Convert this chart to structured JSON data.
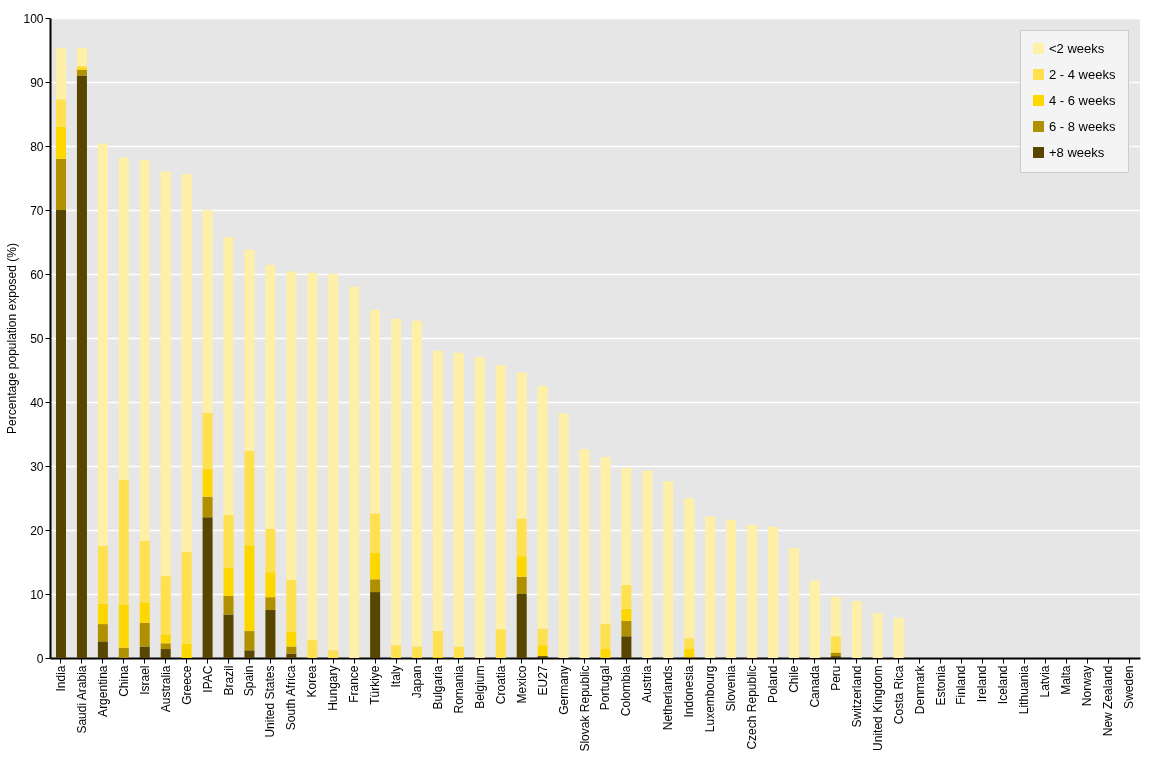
{
  "chart_data": {
    "type": "bar",
    "stacked": true,
    "ylabel": "Percentage population exposed (%)",
    "ylim": [
      0,
      100
    ],
    "yticks": [
      0,
      10,
      20,
      30,
      40,
      50,
      60,
      70,
      80,
      90,
      100
    ],
    "grid": "y",
    "legend": "top right",
    "categories": [
      "India",
      "Saudi Arabia",
      "Argentina",
      "China",
      "Israel",
      "Australia",
      "Greece",
      "IPAC",
      "Brazil",
      "Spain",
      "United States",
      "South Africa",
      "Korea",
      "Hungary",
      "France",
      "Türkiye",
      "Italy",
      "Japan",
      "Bulgaria",
      "Romania",
      "Belgium",
      "Croatia",
      "Mexico",
      "EU27",
      "Germany",
      "Slovak Republic",
      "Portugal",
      "Colombia",
      "Austria",
      "Netherlands",
      "Indonesia",
      "Luxembourg",
      "Slovenia",
      "Czech Republic",
      "Poland",
      "Chile",
      "Canada",
      "Peru",
      "Switzerland",
      "United Kingdom",
      "Costa Rica",
      "Denmark",
      "Estonia",
      "Finland",
      "Ireland",
      "Iceland",
      "Lithuania",
      "Latvia",
      "Malta",
      "Norway",
      "New Zealand",
      "Sweden"
    ],
    "series": [
      {
        "name": "+8 weeks",
        "color": "#574500",
        "values": [
          70,
          91,
          2.6,
          0,
          1.8,
          1.4,
          0,
          22,
          6.8,
          1.2,
          7.5,
          0.7,
          0,
          0,
          0,
          10.3,
          0,
          0,
          0,
          0,
          0,
          0,
          10,
          0.3,
          0,
          0,
          0,
          3.4,
          0,
          0,
          0.1,
          0,
          0,
          0,
          0,
          0,
          0,
          0.3,
          0,
          0,
          0,
          0,
          0,
          0,
          0,
          0,
          0,
          0,
          0,
          0,
          0,
          0
        ]
      },
      {
        "name": "6 - 8 weeks",
        "color": "#b09000",
        "values": [
          8,
          0.9,
          2.7,
          1.6,
          3.7,
          0.9,
          0,
          3.2,
          2.9,
          3,
          2,
          1.1,
          0,
          0,
          0,
          2,
          0,
          0,
          0,
          0,
          0,
          0,
          2.7,
          0,
          0,
          0,
          0,
          2.4,
          0,
          0,
          0,
          0,
          0,
          0,
          0,
          0,
          0,
          0.5,
          0,
          0,
          0,
          0,
          0,
          0,
          0,
          0,
          0,
          0,
          0,
          0,
          0,
          0
        ]
      },
      {
        "name": "4 - 6 weeks",
        "color": "#ffd700",
        "values": [
          5,
          0.3,
          3.2,
          6.7,
          3.2,
          1.4,
          2.2,
          4.3,
          4.4,
          13.4,
          3.9,
          2.3,
          0,
          0,
          0,
          4.1,
          0,
          0,
          0.2,
          0,
          0,
          0,
          3.2,
          1.7,
          0,
          0,
          1.4,
          1.9,
          0,
          0,
          1.3,
          0,
          0,
          0,
          0,
          0,
          0,
          0.2,
          0,
          0,
          0,
          0,
          0,
          0,
          0,
          0,
          0,
          0,
          0,
          0,
          0,
          0
        ]
      },
      {
        "name": "2 - 4 weeks",
        "color": "#ffe14f",
        "values": [
          4.3,
          0.3,
          9,
          19.5,
          9.6,
          9.1,
          14.4,
          8.8,
          8.3,
          14.8,
          6.8,
          8.1,
          2.8,
          1.2,
          0,
          6.2,
          2,
          1.8,
          4,
          1.8,
          0,
          4.5,
          5.9,
          2.6,
          0,
          0,
          3.9,
          3.7,
          0,
          0,
          1.7,
          0,
          0,
          0,
          0,
          0,
          0,
          2.4,
          0,
          0,
          0,
          0,
          0,
          0,
          0,
          0,
          0,
          0,
          0,
          0,
          0,
          0
        ]
      },
      {
        "name": "<2 weeks",
        "color": "#fff0a8",
        "values": [
          8,
          2.8,
          62.9,
          50.4,
          59.5,
          63.2,
          59,
          31.7,
          43.4,
          31.4,
          41.2,
          48.2,
          57.4,
          58.8,
          58,
          31.8,
          51,
          50.9,
          43.8,
          45.9,
          47,
          41.3,
          22.8,
          37.9,
          38.2,
          32.6,
          26.1,
          18.3,
          29.3,
          27.6,
          21.9,
          22.1,
          21.6,
          20.8,
          20.5,
          17.2,
          12.1,
          6.2,
          8.9,
          7,
          6.3,
          0,
          0,
          0,
          0,
          0,
          0,
          0,
          0,
          0,
          0,
          0
        ]
      }
    ]
  }
}
